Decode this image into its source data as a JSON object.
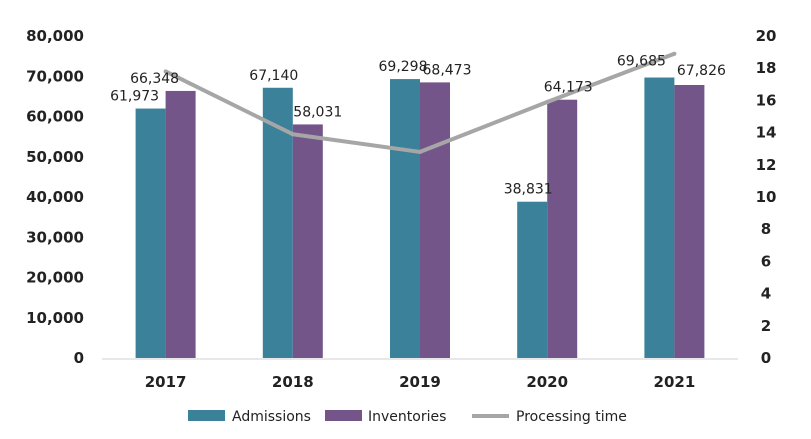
{
  "chart_data": {
    "type": "bar",
    "categories": [
      "2017",
      "2018",
      "2019",
      "2020",
      "2021"
    ],
    "series": [
      {
        "name": "Admissions",
        "kind": "bar",
        "axis": "left",
        "color": "#3a8199",
        "values": [
          61973,
          67140,
          69298,
          38831,
          69685
        ],
        "value_labels": [
          "61,973",
          "67,140",
          "69,298",
          "38,831",
          "69,685"
        ]
      },
      {
        "name": "Inventories",
        "kind": "bar",
        "axis": "left",
        "color": "#74558a",
        "values": [
          66348,
          58031,
          68473,
          64173,
          67826
        ],
        "value_labels": [
          "66,348",
          "58,031",
          "68,473",
          "64,173",
          "67,826"
        ]
      },
      {
        "name": "Processing time",
        "kind": "line",
        "axis": "right",
        "color": "#a6a6a6",
        "values": [
          17.8,
          13.9,
          12.8,
          15.9,
          18.9
        ]
      }
    ],
    "y_left": {
      "min": 0,
      "max": 80000,
      "step": 10000,
      "tick_labels": [
        "0",
        "10,000",
        "20,000",
        "30,000",
        "40,000",
        "50,000",
        "60,000",
        "70,000",
        "80,000"
      ]
    },
    "y_right": {
      "min": 0,
      "max": 20,
      "step": 2,
      "tick_labels": [
        "0",
        "2",
        "4",
        "6",
        "8",
        "10",
        "12",
        "14",
        "16",
        "18",
        "20"
      ]
    },
    "title": "",
    "xlabel": "",
    "ylabel": "",
    "grid": false,
    "legend": "bottom"
  }
}
